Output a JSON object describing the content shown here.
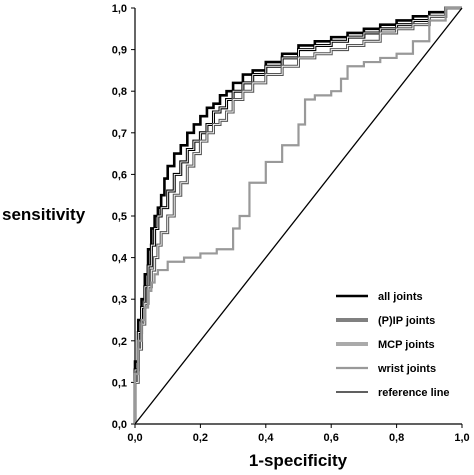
{
  "chart_data": {
    "type": "line",
    "title": "",
    "xlabel": "1-specificity",
    "ylabel": "sensitivity",
    "xlim": [
      0,
      1
    ],
    "ylim": [
      0,
      1
    ],
    "x_ticks": [
      "0,0",
      "0,2",
      "0,4",
      "0,6",
      "0,8",
      "1,0"
    ],
    "x_tick_values": [
      0,
      0.2,
      0.4,
      0.6,
      0.8,
      1.0
    ],
    "y_ticks": [
      "0,0",
      "0,1",
      "0,2",
      "0,3",
      "0,4",
      "0,5",
      "0,6",
      "0,7",
      "0,8",
      "0,9",
      "1,0"
    ],
    "y_tick_values": [
      0,
      0.1,
      0.2,
      0.3,
      0.4,
      0.5,
      0.6,
      0.7,
      0.8,
      0.9,
      1.0
    ],
    "grid": false,
    "legend_position": "bottom-right",
    "series": [
      {
        "name": "all joints",
        "color": "#000000",
        "style": "thick",
        "x": [
          0,
          0.01,
          0.02,
          0.03,
          0.04,
          0.05,
          0.06,
          0.07,
          0.08,
          0.09,
          0.1,
          0.12,
          0.14,
          0.16,
          0.18,
          0.2,
          0.22,
          0.24,
          0.26,
          0.28,
          0.3,
          0.33,
          0.36,
          0.4,
          0.45,
          0.5,
          0.55,
          0.6,
          0.65,
          0.7,
          0.75,
          0.8,
          0.85,
          0.9,
          0.95,
          1.0
        ],
        "y": [
          0,
          0.15,
          0.25,
          0.3,
          0.36,
          0.42,
          0.47,
          0.5,
          0.52,
          0.55,
          0.59,
          0.62,
          0.65,
          0.67,
          0.7,
          0.72,
          0.74,
          0.76,
          0.77,
          0.79,
          0.8,
          0.82,
          0.84,
          0.85,
          0.87,
          0.89,
          0.91,
          0.92,
          0.93,
          0.94,
          0.95,
          0.96,
          0.97,
          0.98,
          0.99,
          1.0
        ]
      },
      {
        "name": "(P)IP joints",
        "color": "#000000",
        "style": "double-dark",
        "x": [
          0,
          0.01,
          0.02,
          0.03,
          0.04,
          0.05,
          0.06,
          0.07,
          0.08,
          0.1,
          0.12,
          0.14,
          0.16,
          0.18,
          0.2,
          0.22,
          0.24,
          0.26,
          0.28,
          0.3,
          0.33,
          0.36,
          0.4,
          0.45,
          0.5,
          0.55,
          0.6,
          0.65,
          0.7,
          0.75,
          0.8,
          0.85,
          0.9,
          0.95,
          1.0
        ],
        "y": [
          0,
          0.13,
          0.22,
          0.28,
          0.33,
          0.38,
          0.43,
          0.47,
          0.5,
          0.52,
          0.56,
          0.6,
          0.63,
          0.66,
          0.68,
          0.7,
          0.72,
          0.75,
          0.76,
          0.78,
          0.8,
          0.82,
          0.84,
          0.86,
          0.88,
          0.9,
          0.91,
          0.92,
          0.93,
          0.94,
          0.95,
          0.96,
          0.97,
          0.98,
          1.0
        ]
      },
      {
        "name": "MCP joints",
        "color": "#444444",
        "style": "double-grey",
        "x": [
          0,
          0.01,
          0.02,
          0.03,
          0.04,
          0.05,
          0.06,
          0.07,
          0.08,
          0.1,
          0.12,
          0.14,
          0.16,
          0.18,
          0.2,
          0.22,
          0.24,
          0.26,
          0.28,
          0.3,
          0.33,
          0.36,
          0.4,
          0.45,
          0.5,
          0.55,
          0.6,
          0.65,
          0.7,
          0.75,
          0.8,
          0.85,
          0.9,
          0.95,
          1.0
        ],
        "y": [
          0,
          0.1,
          0.18,
          0.24,
          0.29,
          0.33,
          0.37,
          0.4,
          0.43,
          0.46,
          0.5,
          0.55,
          0.58,
          0.62,
          0.65,
          0.68,
          0.7,
          0.72,
          0.73,
          0.75,
          0.78,
          0.8,
          0.82,
          0.84,
          0.86,
          0.88,
          0.89,
          0.9,
          0.91,
          0.92,
          0.94,
          0.95,
          0.96,
          0.98,
          1.0
        ]
      },
      {
        "name": "wrist joints",
        "color": "#999999",
        "style": "grey",
        "x": [
          0,
          0.01,
          0.02,
          0.03,
          0.04,
          0.05,
          0.06,
          0.07,
          0.1,
          0.15,
          0.2,
          0.25,
          0.3,
          0.32,
          0.35,
          0.4,
          0.42,
          0.45,
          0.5,
          0.52,
          0.55,
          0.6,
          0.63,
          0.65,
          0.7,
          0.75,
          0.8,
          0.85,
          0.9,
          0.95,
          1.0
        ],
        "y": [
          0,
          0.12,
          0.2,
          0.25,
          0.28,
          0.32,
          0.34,
          0.36,
          0.37,
          0.39,
          0.4,
          0.41,
          0.42,
          0.47,
          0.5,
          0.58,
          0.63,
          0.63,
          0.67,
          0.72,
          0.78,
          0.79,
          0.8,
          0.83,
          0.86,
          0.87,
          0.88,
          0.89,
          0.92,
          0.97,
          1.0
        ]
      },
      {
        "name": "reference line",
        "color": "#000000",
        "style": "thin",
        "x": [
          0,
          1
        ],
        "y": [
          0,
          1
        ]
      }
    ]
  }
}
